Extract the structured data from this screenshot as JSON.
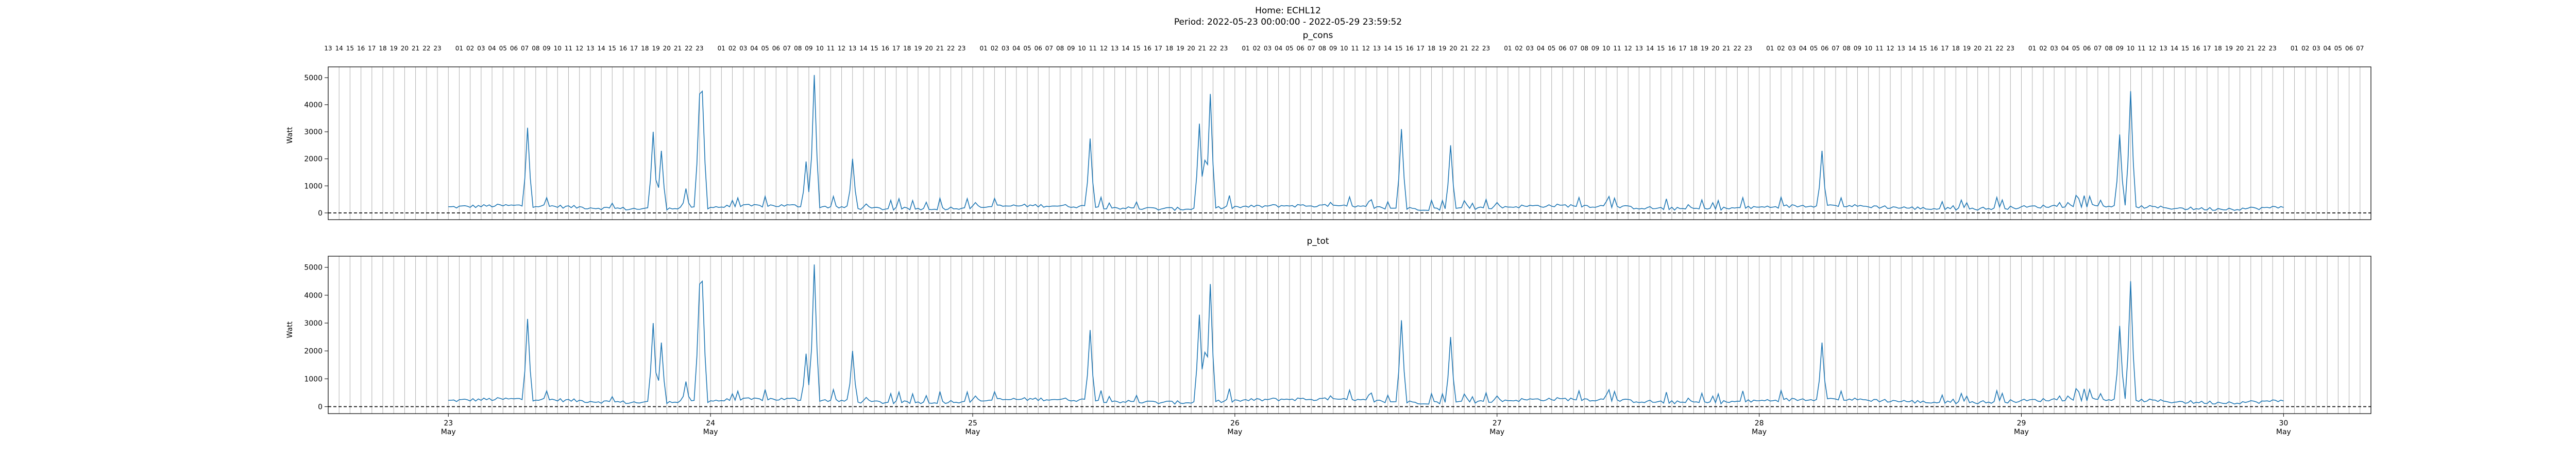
{
  "figure": {
    "title_line1": "Home: ECHL12",
    "title_line2": "Period: 2022-05-23 00:00:00 - 2022-05-29 23:59:52"
  },
  "colors": {
    "line": "#1f77b4",
    "baseline": "#000000",
    "grid": "#b0b0b0"
  },
  "chart_data": [
    {
      "type": "line",
      "title": "p_cons",
      "xlabel": "",
      "ylabel": "Watt",
      "xlim": [
        "2022-05-22 13:00",
        "2022-05-30 08:00"
      ],
      "ylim": [
        -250,
        5400
      ],
      "yticks": [
        0,
        1000,
        2000,
        3000,
        4000,
        5000
      ],
      "grid": "vertical lines at every hour",
      "baseline": 0,
      "top_tick_labels": "hour of day (01-23) at each hour",
      "series": [
        {
          "x_start": "2022-05-23 00:00",
          "x_step_hours": 0.25,
          "peaks": [
            [
              "2022-05-23 07:15",
              3150
            ],
            [
              "2022-05-23 18:45",
              3000
            ],
            [
              "2022-05-23 19:30",
              2300
            ],
            [
              "2022-05-23 21:45",
              900
            ],
            [
              "2022-05-23 23:00",
              4400
            ],
            [
              "2022-05-23 23:15",
              4500
            ],
            [
              "2022-05-24 08:45",
              1900
            ],
            [
              "2022-05-24 09:30",
              5100
            ],
            [
              "2022-05-24 13:00",
              2000
            ],
            [
              "2022-05-25 10:45",
              2750
            ],
            [
              "2022-05-25 20:45",
              3300
            ],
            [
              "2022-05-25 21:15",
              1950
            ],
            [
              "2022-05-25 21:45",
              4400
            ],
            [
              "2022-05-26 15:15",
              3100
            ],
            [
              "2022-05-26 19:45",
              2500
            ],
            [
              "2022-05-28 05:45",
              2300
            ],
            [
              "2022-05-29 09:00",
              2900
            ],
            [
              "2022-05-29 10:00",
              4500
            ]
          ]
        }
      ]
    },
    {
      "type": "line",
      "title": "p_tot",
      "xlabel": "",
      "ylabel": "Watt",
      "xlim": [
        "2022-05-22 13:00",
        "2022-05-30 08:00"
      ],
      "ylim": [
        -250,
        5400
      ],
      "yticks": [
        0,
        1000,
        2000,
        3000,
        4000,
        5000
      ],
      "grid": "vertical lines at every hour",
      "baseline": 0,
      "xticks": [
        {
          "value": "2022-05-23",
          "day": "23",
          "month": "May"
        },
        {
          "value": "2022-05-24",
          "day": "24",
          "month": "May"
        },
        {
          "value": "2022-05-25",
          "day": "25",
          "month": "May"
        },
        {
          "value": "2022-05-26",
          "day": "26",
          "month": "May"
        },
        {
          "value": "2022-05-27",
          "day": "27",
          "month": "May"
        },
        {
          "value": "2022-05-28",
          "day": "28",
          "month": "May"
        },
        {
          "value": "2022-05-29",
          "day": "29",
          "month": "May"
        },
        {
          "value": "2022-05-30",
          "day": "30",
          "month": "May"
        }
      ],
      "series": [
        {
          "x_start": "2022-05-23 00:00",
          "x_step_hours": 0.25,
          "peaks": [
            [
              "2022-05-23 07:15",
              3150
            ],
            [
              "2022-05-23 18:45",
              3000
            ],
            [
              "2022-05-23 19:30",
              2300
            ],
            [
              "2022-05-23 21:45",
              900
            ],
            [
              "2022-05-23 23:00",
              4400
            ],
            [
              "2022-05-23 23:15",
              4500
            ],
            [
              "2022-05-24 08:45",
              1900
            ],
            [
              "2022-05-24 09:30",
              5100
            ],
            [
              "2022-05-24 13:00",
              2000
            ],
            [
              "2022-05-25 10:45",
              2750
            ],
            [
              "2022-05-25 20:45",
              3300
            ],
            [
              "2022-05-25 21:15",
              1950
            ],
            [
              "2022-05-25 21:45",
              4400
            ],
            [
              "2022-05-26 15:15",
              3100
            ],
            [
              "2022-05-26 19:45",
              2500
            ],
            [
              "2022-05-28 05:45",
              2300
            ],
            [
              "2022-05-29 09:00",
              2900
            ],
            [
              "2022-05-29 10:00",
              4500
            ]
          ]
        }
      ]
    }
  ]
}
